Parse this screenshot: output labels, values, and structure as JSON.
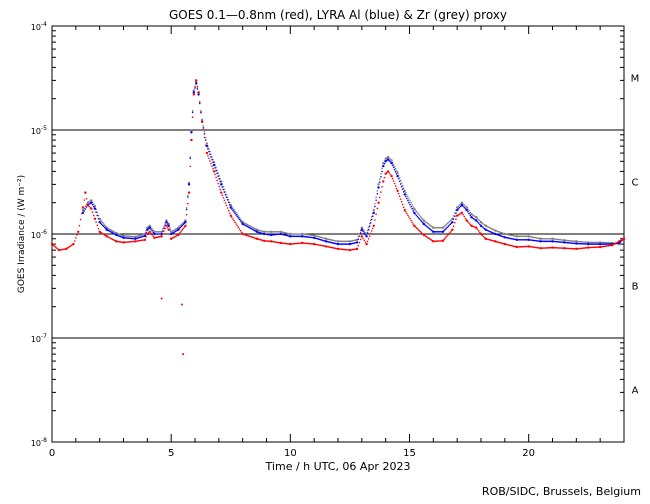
{
  "chart_data": {
    "type": "scatter",
    "title": "GOES 0.1—0.8nm (red), LYRA Al (blue) & Zr (grey) proxy",
    "xlabel": "Time / h UTC, 06 Apr 2023",
    "ylabel": "GOES Irradiance / (W m⁻²)",
    "credit": "ROB/SIDC, Brussels, Belgium",
    "xlim": [
      0,
      24
    ],
    "ylim": [
      1e-08,
      0.0001
    ],
    "yscale": "log",
    "x_ticks": [
      0,
      5,
      10,
      15,
      20
    ],
    "x_tick_labels": [
      "0",
      "5",
      "10",
      "15",
      "20"
    ],
    "y_ticks": [
      {
        "value": 0.0001,
        "base": "10",
        "exp": "-4"
      },
      {
        "value": 1e-05,
        "base": "10",
        "exp": "-5"
      },
      {
        "value": 1e-06,
        "base": "10",
        "exp": "-6"
      },
      {
        "value": 1e-07,
        "base": "10",
        "exp": "-7"
      },
      {
        "value": 1e-08,
        "base": "10",
        "exp": "-8"
      }
    ],
    "flare_class_lines": [
      1e-05,
      1e-06,
      1e-07
    ],
    "flare_class_labels": [
      {
        "label": "M",
        "value": 3.2e-05
      },
      {
        "label": "C",
        "value": 3.2e-06
      },
      {
        "label": "B",
        "value": 3.2e-07
      },
      {
        "label": "A",
        "value": 3.2e-08
      }
    ],
    "colors": {
      "goes": "#ff0000",
      "lyra_al": "#0000ff",
      "lyra_zr": "#808080",
      "axes": "#000000"
    },
    "series": [
      {
        "name": "GOES 0.1—0.8nm",
        "color": "#ff0000",
        "x": [
          0.0,
          0.3,
          0.6,
          0.9,
          1.1,
          1.3,
          1.4,
          1.5,
          1.65,
          1.8,
          2.0,
          2.3,
          2.7,
          3.0,
          3.5,
          3.9,
          4.0,
          4.1,
          4.3,
          4.6,
          4.8,
          4.9,
          5.0,
          5.3,
          5.6,
          5.75,
          5.85,
          5.95,
          6.05,
          6.15,
          6.3,
          6.5,
          6.8,
          7.1,
          7.5,
          8.0,
          8.6,
          8.9,
          9.2,
          9.6,
          10.0,
          10.5,
          11.0,
          11.5,
          12.0,
          12.5,
          12.8,
          13.0,
          13.2,
          13.5,
          13.7,
          13.9,
          14.0,
          14.1,
          14.25,
          14.5,
          14.8,
          15.2,
          15.6,
          16.0,
          16.4,
          16.8,
          17.0,
          17.2,
          17.4,
          17.6,
          17.8,
          18.0,
          18.2,
          18.6,
          19.0,
          19.5,
          20.0,
          20.5,
          21.0,
          21.5,
          22.0,
          22.5,
          23.0,
          23.5,
          23.8,
          24.0
        ],
        "y": [
          8e-07,
          7e-07,
          7.2e-07,
          8e-07,
          1.05e-06,
          1.8e-06,
          2.5e-06,
          1.9e-06,
          1.75e-06,
          1.4e-06,
          1.05e-06,
          9.5e-07,
          8.5e-07,
          8.3e-07,
          8.5e-07,
          8.8e-07,
          1e-06,
          1.05e-06,
          9.2e-07,
          9.5e-07,
          1.2e-06,
          1.1e-06,
          9e-07,
          9.8e-07,
          1.2e-06,
          2.5e-06,
          8e-06,
          2.2e-05,
          3e-05,
          2.3e-05,
          1.2e-05,
          6e-06,
          4e-06,
          2.5e-06,
          1.5e-06,
          1e-06,
          9e-07,
          8.6e-07,
          8.5e-07,
          8.2e-07,
          8e-07,
          8.2e-07,
          8e-07,
          7.6e-07,
          7.2e-07,
          7e-07,
          7.2e-07,
          9.5e-07,
          8e-07,
          1.2e-06,
          2e-06,
          3.2e-06,
          3.8e-06,
          4e-06,
          3.6e-06,
          2.6e-06,
          1.7e-06,
          1.2e-06,
          9.8e-07,
          8.5e-07,
          8.6e-07,
          1.1e-06,
          1.5e-06,
          1.6e-06,
          1.35e-06,
          1.2e-06,
          1.15e-06,
          1e-06,
          9e-07,
          8.5e-07,
          8e-07,
          7.5e-07,
          7.6e-07,
          7.3e-07,
          7.4e-07,
          7.3e-07,
          7.2e-07,
          7.4e-07,
          7.5e-07,
          7.8e-07,
          8.5e-07,
          9e-07
        ]
      },
      {
        "name": "LYRA Al",
        "color": "#0000ff",
        "x": [
          1.3,
          1.5,
          1.65,
          1.8,
          2.0,
          2.3,
          2.7,
          3.0,
          3.5,
          3.9,
          4.0,
          4.1,
          4.3,
          4.6,
          4.8,
          4.9,
          5.0,
          5.3,
          5.6,
          5.75,
          5.85,
          5.95,
          6.05,
          6.15,
          6.3,
          6.5,
          6.8,
          7.1,
          7.5,
          8.0,
          8.6,
          8.9,
          9.2,
          9.6,
          10.0,
          10.5,
          11.0,
          11.5,
          12.0,
          12.5,
          12.8,
          13.0,
          13.2,
          13.5,
          13.7,
          13.9,
          14.0,
          14.1,
          14.25,
          14.5,
          14.8,
          15.2,
          15.6,
          16.0,
          16.4,
          16.8,
          17.0,
          17.2,
          17.4,
          17.6,
          17.8,
          18.0,
          18.2,
          18.6,
          19.0,
          19.5,
          20.0,
          20.5,
          21.0,
          21.5,
          22.0,
          22.5,
          23.0,
          23.5,
          23.8,
          24.0
        ],
        "y": [
          1.6e-06,
          1.9e-06,
          2e-06,
          1.75e-06,
          1.3e-06,
          1.1e-06,
          9.8e-07,
          9.2e-07,
          9e-07,
          9.6e-07,
          1.1e-06,
          1.15e-06,
          1e-06,
          1e-06,
          1.3e-06,
          1.2e-06,
          1e-06,
          1.1e-06,
          1.3e-06,
          3e-06,
          9.5e-06,
          2.3e-05,
          2.8e-05,
          2.2e-05,
          1.2e-05,
          7e-06,
          4.6e-06,
          3e-06,
          1.8e-06,
          1.25e-06,
          1.05e-06,
          1e-06,
          9.8e-07,
          1e-06,
          9.5e-07,
          9.5e-07,
          9.2e-07,
          8.5e-07,
          8e-07,
          8e-07,
          8.3e-07,
          1.1e-06,
          9.5e-07,
          1.6e-06,
          2.8e-06,
          4.5e-06,
          5e-06,
          5.2e-06,
          4.8e-06,
          3.6e-06,
          2.4e-06,
          1.6e-06,
          1.25e-06,
          1.05e-06,
          1.05e-06,
          1.3e-06,
          1.7e-06,
          1.9e-06,
          1.7e-06,
          1.45e-06,
          1.35e-06,
          1.2e-06,
          1.1e-06,
          1e-06,
          9.3e-07,
          8.8e-07,
          8.8e-07,
          8.5e-07,
          8.5e-07,
          8.3e-07,
          8.1e-07,
          8e-07,
          8e-07,
          8e-07,
          8.2e-07,
          9e-07
        ]
      },
      {
        "name": "LYRA Zr",
        "color": "#808080",
        "x": [
          1.3,
          1.5,
          1.65,
          1.8,
          2.0,
          2.3,
          2.7,
          3.0,
          3.5,
          3.9,
          4.0,
          4.1,
          4.3,
          4.6,
          4.8,
          4.9,
          5.0,
          5.3,
          5.6,
          5.75,
          5.85,
          5.95,
          6.05,
          6.15,
          6.3,
          6.5,
          6.8,
          7.1,
          7.5,
          8.0,
          8.6,
          8.9,
          9.2,
          9.6,
          10.0,
          10.5,
          11.0,
          11.5,
          12.0,
          12.5,
          12.8,
          13.0,
          13.2,
          13.5,
          13.7,
          13.9,
          14.0,
          14.1,
          14.25,
          14.5,
          14.8,
          15.2,
          15.6,
          16.0,
          16.4,
          16.8,
          17.0,
          17.2,
          17.4,
          17.6,
          17.8,
          18.0,
          18.2,
          18.6,
          19.0,
          19.5,
          20.0,
          20.5,
          21.0,
          21.5,
          22.0,
          22.5,
          23.0,
          23.5,
          23.8,
          24.0
        ],
        "y": [
          1.7e-06,
          2e-06,
          2.1e-06,
          1.85e-06,
          1.4e-06,
          1.15e-06,
          1.02e-06,
          9.6e-07,
          9.4e-07,
          1e-06,
          1.15e-06,
          1.2e-06,
          1.05e-06,
          1.05e-06,
          1.35e-06,
          1.25e-06,
          1.05e-06,
          1.15e-06,
          1.35e-06,
          3.1e-06,
          9.8e-06,
          2.4e-05,
          2.9e-05,
          2.3e-05,
          1.25e-05,
          7.4e-06,
          4.9e-06,
          3.2e-06,
          1.9e-06,
          1.3e-06,
          1.1e-06,
          1.05e-06,
          1.05e-06,
          1.05e-06,
          1e-06,
          1e-06,
          9.7e-07,
          9e-07,
          8.5e-07,
          8.5e-07,
          8.8e-07,
          1.15e-06,
          1e-06,
          1.7e-06,
          3e-06,
          4.8e-06,
          5.3e-06,
          5.5e-06,
          5.1e-06,
          3.9e-06,
          2.6e-06,
          1.75e-06,
          1.35e-06,
          1.15e-06,
          1.15e-06,
          1.4e-06,
          1.8e-06,
          2e-06,
          1.8e-06,
          1.55e-06,
          1.45e-06,
          1.3e-06,
          1.2e-06,
          1.08e-06,
          1e-06,
          9.5e-07,
          9.5e-07,
          9e-07,
          9e-07,
          8.7e-07,
          8.5e-07,
          8.3e-07,
          8.3e-07,
          8.2e-07,
          8e-07,
          9.5e-07
        ]
      }
    ],
    "outliers": {
      "x": [
        4.6,
        5.45,
        5.5
      ],
      "y": [
        2.4e-07,
        2.1e-07,
        7e-08
      ],
      "color": "#ff0000"
    }
  }
}
